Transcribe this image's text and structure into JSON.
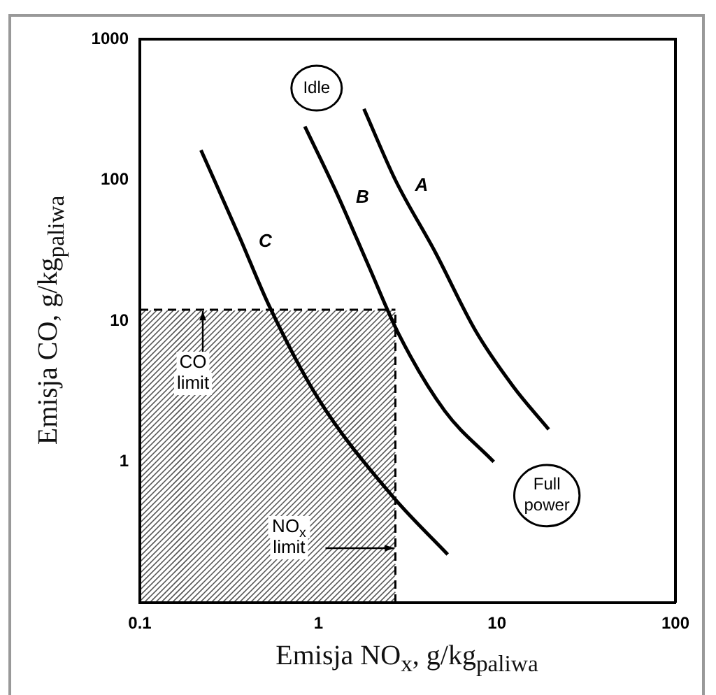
{
  "chart_data": {
    "type": "line",
    "xlabel": "Emisja NO$_{x}$, g/kg$_{paliwa}$",
    "ylabel": "Emisja CO, g/kg$_{paliwa}$",
    "log": "xy",
    "xlim": [
      0.1,
      100
    ],
    "ylim": [
      0.1,
      1000
    ],
    "xticks": [
      0.1,
      1,
      10,
      100
    ],
    "yticks": [
      1,
      10,
      100,
      1000
    ],
    "grid": false,
    "legend": false,
    "marker": "none",
    "line_style": "solid",
    "series": [
      {
        "name": "A",
        "color": "#000000",
        "x": [
          1.8,
          2.7,
          4.5,
          7.6,
          12.4,
          19.5
        ],
        "values": [
          320,
          100,
          31,
          8.5,
          3.4,
          1.7
        ]
      },
      {
        "name": "B",
        "color": "#000000",
        "x": [
          0.84,
          1.26,
          1.9,
          2.8,
          5.1,
          9.6
        ],
        "values": [
          240,
          82,
          25,
          8.2,
          2.3,
          1.0
        ]
      },
      {
        "name": "C",
        "color": "#000000",
        "x": [
          0.22,
          0.36,
          0.53,
          1.0,
          2.6,
          5.3
        ],
        "values": [
          163,
          40,
          12.8,
          2.8,
          0.57,
          0.22
        ]
      }
    ],
    "ref_lines": [
      {
        "axis": "y",
        "value": 12,
        "label": "CO limit",
        "line_style": "dashed"
      },
      {
        "axis": "x",
        "value": 2.7,
        "label": "NO$_{x}$ limit",
        "line_style": "dashed"
      }
    ],
    "annotations": [
      "Idle",
      "Full power"
    ]
  }
}
